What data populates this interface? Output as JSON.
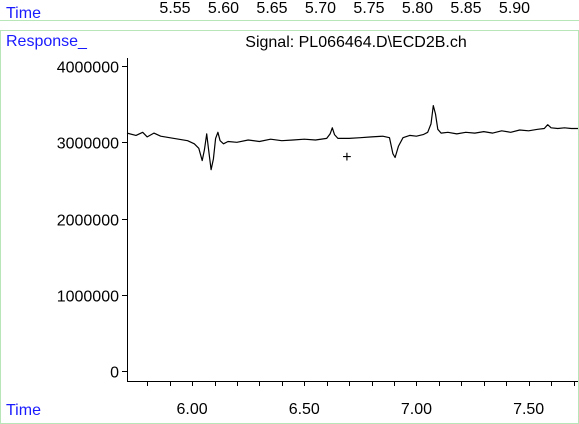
{
  "top_bar": {
    "label": "Time",
    "time_ticks": [
      "5.55",
      "5.60",
      "5.65",
      "5.70",
      "5.75",
      "5.80",
      "5.85",
      "5.90"
    ]
  },
  "panel": {
    "y_axis_caption": "Response_",
    "signal_title": "Signal: PL066464.D\\ECD2B.ch",
    "x_axis_caption": "Time",
    "cursor_marker": "+"
  },
  "colors": {
    "caption_blue": "#1a1aff",
    "panel_border": "#b8e6b8",
    "trace": "#000000"
  },
  "chart_data": {
    "type": "line",
    "title": "Signal: PL066464.D\\ECD2B.ch",
    "xlabel": "Time",
    "ylabel": "Response_",
    "xlim": [
      5.71,
      7.72
    ],
    "ylim": [
      0,
      4000000
    ],
    "x_ticks": [
      6.0,
      6.5,
      7.0,
      7.5
    ],
    "x_tick_labels": [
      "6.00",
      "6.50",
      "7.00",
      "7.50"
    ],
    "y_ticks": [
      0,
      1000000,
      2000000,
      3000000,
      4000000
    ],
    "y_tick_labels": [
      "0",
      "1000000",
      "2000000",
      "3000000",
      "4000000"
    ],
    "cursor": {
      "x": 6.69,
      "y": 2820000
    },
    "grid": false,
    "series": [
      {
        "values_x": [
          5.71,
          5.75,
          5.78,
          5.8,
          5.83,
          5.86,
          5.9,
          5.94,
          5.98,
          6.01,
          6.03,
          6.045,
          6.055,
          6.065,
          6.075,
          6.085,
          6.095,
          6.105,
          6.115,
          6.125,
          6.14,
          6.16,
          6.2,
          6.25,
          6.3,
          6.35,
          6.4,
          6.45,
          6.5,
          6.55,
          6.6,
          6.615,
          6.625,
          6.635,
          6.65,
          6.7,
          6.75,
          6.8,
          6.85,
          6.88,
          6.895,
          6.905,
          6.92,
          6.94,
          6.97,
          7.0,
          7.03,
          7.05,
          7.065,
          7.075,
          7.085,
          7.095,
          7.11,
          7.14,
          7.18,
          7.22,
          7.26,
          7.3,
          7.34,
          7.38,
          7.42,
          7.46,
          7.5,
          7.54,
          7.57,
          7.585,
          7.6,
          7.63,
          7.66,
          7.69,
          7.72
        ],
        "values_y": [
          3120000,
          3090000,
          3130000,
          3070000,
          3120000,
          3080000,
          3060000,
          3040000,
          3020000,
          2980000,
          2920000,
          2760000,
          2900000,
          3110000,
          2870000,
          2640000,
          2780000,
          3050000,
          3130000,
          3020000,
          2980000,
          3010000,
          3000000,
          3030000,
          3010000,
          3040000,
          3020000,
          3030000,
          3040000,
          3030000,
          3050000,
          3110000,
          3190000,
          3100000,
          3050000,
          3050000,
          3060000,
          3070000,
          3080000,
          3060000,
          2850000,
          2800000,
          2950000,
          3060000,
          3090000,
          3080000,
          3100000,
          3130000,
          3240000,
          3480000,
          3370000,
          3170000,
          3120000,
          3130000,
          3110000,
          3130000,
          3120000,
          3140000,
          3120000,
          3150000,
          3130000,
          3160000,
          3150000,
          3170000,
          3180000,
          3230000,
          3190000,
          3180000,
          3190000,
          3180000,
          3180000
        ]
      }
    ]
  }
}
